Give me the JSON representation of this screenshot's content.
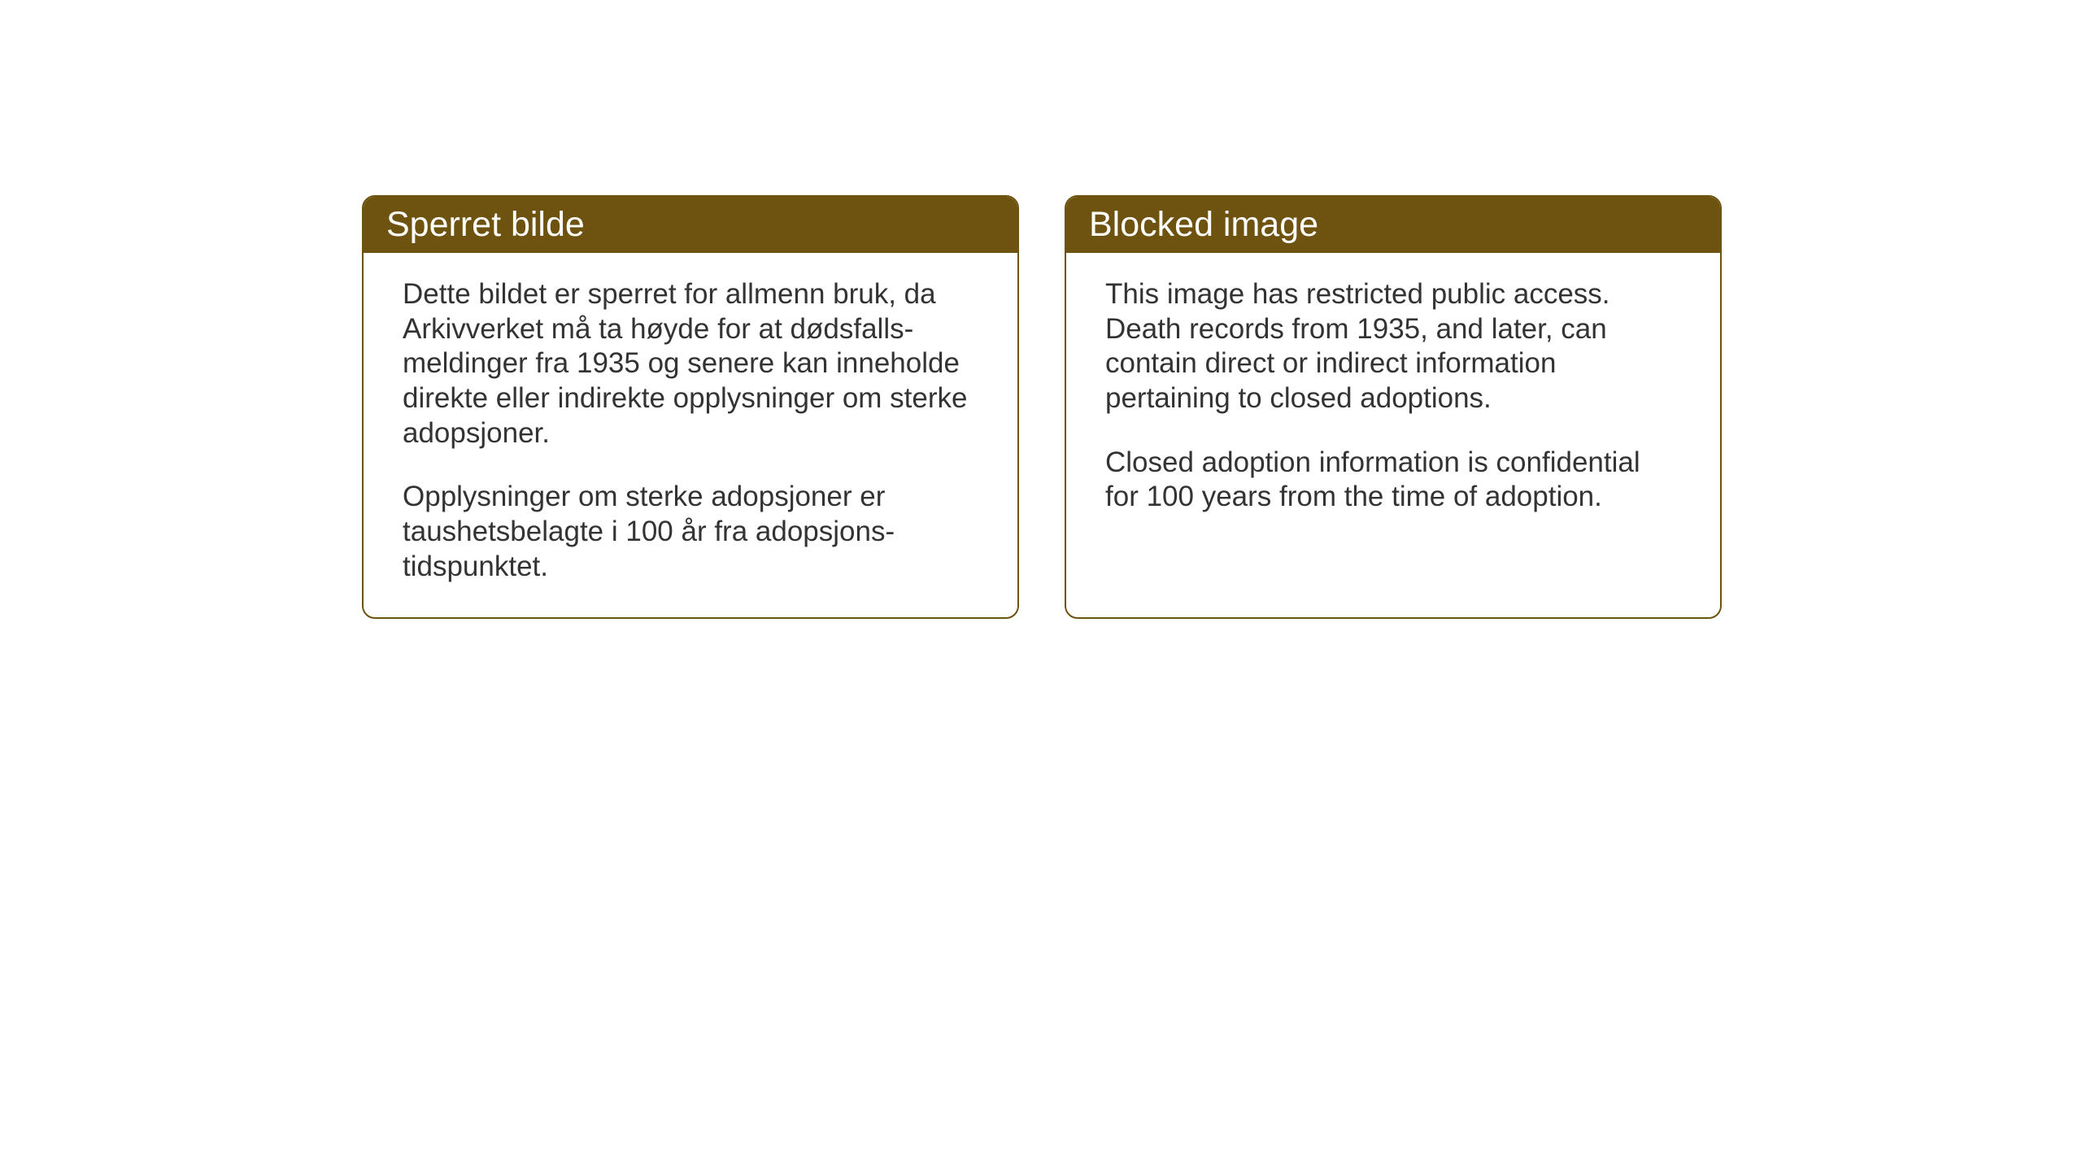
{
  "cards": {
    "norwegian": {
      "title": "Sperret bilde",
      "paragraph1": "Dette bildet er sperret for allmenn bruk, da Arkivverket må ta høyde for at dødsfalls-meldinger fra 1935 og senere kan inneholde direkte eller indirekte opplysninger om sterke adopsjoner.",
      "paragraph2": "Opplysninger om sterke adopsjoner er taushetsbelagte i 100 år fra adopsjons-tidspunktet."
    },
    "english": {
      "title": "Blocked image",
      "paragraph1": "This image has restricted public access. Death records from 1935, and later, can contain direct or indirect information pertaining to closed adoptions.",
      "paragraph2": "Closed adoption information is confidential for 100 years from the time of adoption."
    }
  },
  "styling": {
    "header_background": "#6e5310",
    "header_text_color": "#ffffff",
    "border_color": "#6e5310",
    "body_text_color": "#333333",
    "background_color": "#ffffff",
    "header_fontsize": 43,
    "body_fontsize": 35,
    "border_radius": 16,
    "border_width": 2
  }
}
